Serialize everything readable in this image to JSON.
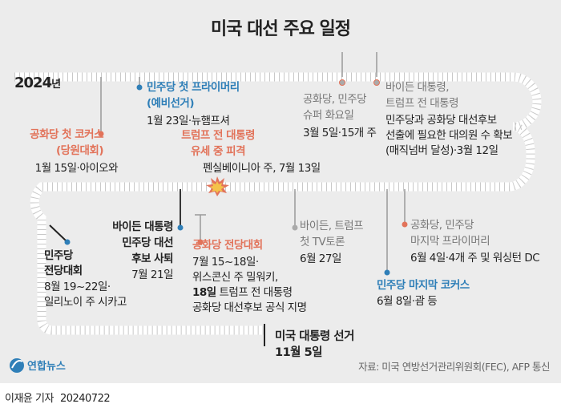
{
  "title": "미국 대선 주요 일정",
  "year": {
    "number": "2024",
    "suffix": "년"
  },
  "colors": {
    "blue": "#2f7fb8",
    "orange": "#e2735a",
    "gray": "#777777",
    "dark": "#222222",
    "background": "#ececec",
    "track": "#ffffff"
  },
  "events": {
    "gop_caucus": {
      "line1": "공화당 첫 코커스",
      "line2": "(당원대회)",
      "detail": "1월 15일·아이오와"
    },
    "dem_primary": {
      "line1": "민주당 첫 프라이머리",
      "line2": "(예비선거)",
      "detail": "1월 23일·뉴햄프셔"
    },
    "trump_shot": {
      "line1": "트럼프 전 대통령",
      "line2": "유세 중 피격",
      "detail": "펜실베이니아 주, 7월 13일"
    },
    "super_tuesday": {
      "line1": "공화당, 민주당",
      "line2": "슈퍼 화요일",
      "detail": "3월 5일·15개 주"
    },
    "biden_majority": {
      "line1": "바이든 대통령,",
      "line2": "트럼프 전 대통령",
      "detail1": "민주당과 공화당 대선후보",
      "detail2": "선출에 필요한 대의원 수 확보",
      "detail3": "(매직넘버 달성)·3월 12일"
    },
    "dem_convention": {
      "line1": "민주당",
      "line2": "전당대회",
      "detail1": "8월 19~22일·",
      "detail2": "일리노이 주 시카고"
    },
    "biden_withdraw": {
      "line1": "바이든 대통령",
      "line2": "민주당 대선",
      "line3": "후보 사퇴",
      "detail": "7월 21일"
    },
    "gop_convention": {
      "line1": "공화당 전당대회",
      "detail1": "7월 15~18일·",
      "detail2": "위스콘신 주 밀워키,",
      "detail3_bold": "18일",
      "detail3": " 트럼프 전 대통령",
      "detail4": "공화당 대선후보 공식 지명"
    },
    "tv_debate": {
      "line1": "바이든, 트럼프",
      "line2": "첫 TV토론",
      "detail": "6월 27일"
    },
    "last_caucus": {
      "line1": "민주당 마지막 코커스",
      "detail": "6월 8일·괌 등"
    },
    "last_primary": {
      "line1": "공화당, 민주당",
      "line2": "마지막 프라이머리",
      "detail": "6월 4일·4개 주 및 워싱턴 DC"
    },
    "election": {
      "line1": "미국 대통령 선거",
      "line2": "11월 5일"
    }
  },
  "source": "자료: 미국 연방선거관리위원회(FEC), AFP 통신",
  "logo_text": "연합뉴스",
  "author": "이재윤 기자",
  "date": "20240722"
}
